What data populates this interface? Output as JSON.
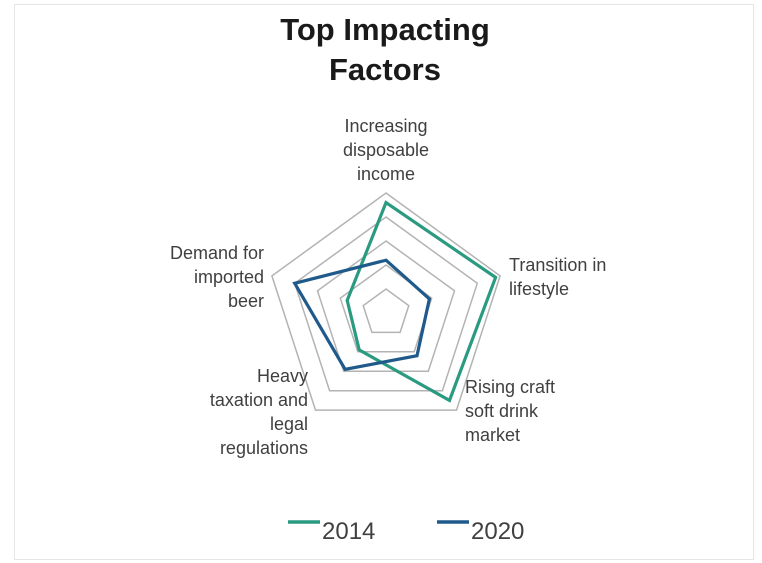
{
  "chart_data": {
    "type": "radar",
    "title_lines": [
      "Top Impacting",
      "Factors"
    ],
    "axes": [
      {
        "label_lines": [
          "Increasing",
          "disposable",
          "income"
        ]
      },
      {
        "label_lines": [
          "Transition in",
          "lifestyle"
        ]
      },
      {
        "label_lines": [
          "Rising craft",
          "soft drink",
          "market"
        ]
      },
      {
        "label_lines": [
          "Heavy",
          "taxation and",
          "legal",
          "regulations"
        ]
      },
      {
        "label_lines": [
          "Demand for",
          "imported",
          "beer"
        ]
      }
    ],
    "rlim": [
      0,
      5
    ],
    "rings": 5,
    "series": [
      {
        "name": "2014",
        "color": "#2a9a80",
        "values": [
          4.6,
          4.8,
          4.5,
          1.9,
          1.7
        ]
      },
      {
        "name": "2020",
        "color": "#1f5a8a",
        "values": [
          2.2,
          1.9,
          2.2,
          2.9,
          4.0
        ]
      }
    ],
    "grid_color": "#b3b3b3",
    "legend_position": "bottom"
  }
}
